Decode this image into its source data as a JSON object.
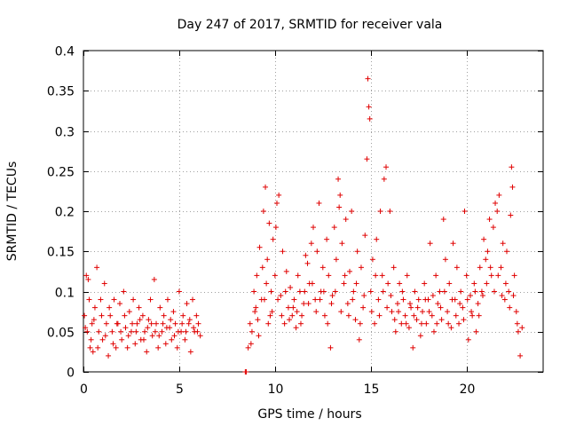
{
  "chart_data": {
    "type": "scatter",
    "title": "Day 247 of 2017, SRMTID for receiver vala",
    "xlabel": "GPS time / hours",
    "ylabel": "SRMTID / TECUs",
    "xlim": [
      0,
      24
    ],
    "ylim": [
      0,
      0.4
    ],
    "xticks": [
      0,
      5,
      10,
      15,
      20
    ],
    "xtick_labels": [
      "0",
      "5",
      "10",
      "15",
      "20"
    ],
    "yticks": [
      0,
      0.05,
      0.1,
      0.15,
      0.2,
      0.25,
      0.3,
      0.35,
      0.4
    ],
    "ytick_labels": [
      "0",
      "0.05",
      "0.1",
      "0.15",
      "0.2",
      "0.25",
      "0.3",
      "0.35",
      "0.4"
    ],
    "grid": true,
    "marker": "plus",
    "color": "#e00000",
    "series": [
      {
        "name": "SRMTID",
        "points": [
          [
            0.05,
            0.07
          ],
          [
            0.15,
            0.12
          ],
          [
            0.2,
            0.05
          ],
          [
            0.25,
            0.115
          ],
          [
            0.3,
            0.09
          ],
          [
            0.35,
            0.03
          ],
          [
            0.45,
            0.06
          ],
          [
            0.5,
            0.025
          ],
          [
            0.6,
            0.08
          ],
          [
            0.7,
            0.13
          ],
          [
            0.8,
            0.05
          ],
          [
            0.9,
            0.09
          ],
          [
            1.0,
            0.04
          ],
          [
            1.1,
            0.11
          ],
          [
            1.2,
            0.06
          ],
          [
            1.3,
            0.02
          ],
          [
            1.4,
            0.07
          ],
          [
            1.5,
            0.05
          ],
          [
            1.6,
            0.09
          ],
          [
            1.7,
            0.03
          ],
          [
            1.8,
            0.06
          ],
          [
            1.9,
            0.085
          ],
          [
            2.0,
            0.04
          ],
          [
            2.1,
            0.1
          ],
          [
            2.2,
            0.055
          ],
          [
            2.3,
            0.03
          ],
          [
            2.4,
            0.075
          ],
          [
            2.5,
            0.05
          ],
          [
            2.6,
            0.09
          ],
          [
            2.7,
            0.035
          ],
          [
            2.8,
            0.06
          ],
          [
            2.9,
            0.08
          ],
          [
            3.0,
            0.04
          ],
          [
            3.1,
            0.07
          ],
          [
            3.2,
            0.05
          ],
          [
            3.3,
            0.025
          ],
          [
            3.4,
            0.065
          ],
          [
            3.5,
            0.09
          ],
          [
            3.6,
            0.045
          ],
          [
            3.7,
            0.115
          ],
          [
            3.8,
            0.06
          ],
          [
            3.9,
            0.03
          ],
          [
            4.0,
            0.08
          ],
          [
            4.1,
            0.05
          ],
          [
            4.2,
            0.07
          ],
          [
            4.3,
            0.035
          ],
          [
            4.4,
            0.09
          ],
          [
            4.5,
            0.055
          ],
          [
            4.6,
            0.04
          ],
          [
            4.7,
            0.075
          ],
          [
            4.8,
            0.06
          ],
          [
            4.9,
            0.03
          ],
          [
            5.0,
            0.1
          ],
          [
            5.1,
            0.05
          ],
          [
            5.2,
            0.07
          ],
          [
            5.3,
            0.04
          ],
          [
            5.4,
            0.085
          ],
          [
            5.5,
            0.06
          ],
          [
            5.6,
            0.025
          ],
          [
            5.7,
            0.09
          ],
          [
            5.8,
            0.05
          ],
          [
            5.9,
            0.07
          ],
          [
            6.0,
            0.06
          ],
          [
            6.1,
            0.045
          ],
          [
            0.1,
            0.055
          ],
          [
            0.4,
            0.04
          ],
          [
            0.55,
            0.065
          ],
          [
            0.75,
            0.03
          ],
          [
            0.95,
            0.07
          ],
          [
            1.15,
            0.045
          ],
          [
            1.35,
            0.08
          ],
          [
            1.55,
            0.035
          ],
          [
            1.75,
            0.06
          ],
          [
            1.95,
            0.05
          ],
          [
            2.15,
            0.07
          ],
          [
            2.35,
            0.045
          ],
          [
            2.55,
            0.06
          ],
          [
            2.75,
            0.05
          ],
          [
            2.95,
            0.065
          ],
          [
            3.15,
            0.04
          ],
          [
            3.35,
            0.055
          ],
          [
            3.55,
            0.06
          ],
          [
            3.75,
            0.05
          ],
          [
            3.95,
            0.045
          ],
          [
            4.15,
            0.06
          ],
          [
            4.35,
            0.055
          ],
          [
            4.55,
            0.065
          ],
          [
            4.75,
            0.045
          ],
          [
            4.95,
            0.05
          ],
          [
            5.15,
            0.06
          ],
          [
            5.35,
            0.05
          ],
          [
            5.55,
            0.065
          ],
          [
            5.75,
            0.055
          ],
          [
            5.95,
            0.05
          ],
          [
            8.45,
            0.0
          ],
          [
            8.5,
            0.0
          ],
          [
            8.6,
            0.03
          ],
          [
            8.7,
            0.06
          ],
          [
            8.8,
            0.05
          ],
          [
            8.9,
            0.1
          ],
          [
            9.0,
            0.08
          ],
          [
            9.05,
            0.12
          ],
          [
            9.1,
            0.065
          ],
          [
            9.2,
            0.155
          ],
          [
            9.3,
            0.09
          ],
          [
            9.35,
            0.13
          ],
          [
            9.4,
            0.2
          ],
          [
            9.5,
            0.23
          ],
          [
            9.55,
            0.11
          ],
          [
            9.6,
            0.14
          ],
          [
            9.7,
            0.185
          ],
          [
            9.75,
            0.07
          ],
          [
            9.8,
            0.1
          ],
          [
            9.9,
            0.165
          ],
          [
            10.0,
            0.12
          ],
          [
            10.05,
            0.18
          ],
          [
            10.1,
            0.21
          ],
          [
            10.2,
            0.22
          ],
          [
            10.3,
            0.095
          ],
          [
            10.4,
            0.15
          ],
          [
            10.5,
            0.06
          ],
          [
            10.6,
            0.125
          ],
          [
            10.7,
            0.08
          ],
          [
            10.8,
            0.105
          ],
          [
            10.9,
            0.07
          ],
          [
            11.0,
            0.09
          ],
          [
            11.1,
            0.055
          ],
          [
            11.2,
            0.12
          ],
          [
            11.3,
            0.1
          ],
          [
            11.4,
            0.07
          ],
          [
            11.5,
            0.085
          ],
          [
            11.6,
            0.145
          ],
          [
            11.7,
            0.135
          ],
          [
            11.8,
            0.11
          ],
          [
            11.9,
            0.16
          ],
          [
            12.0,
            0.18
          ],
          [
            12.1,
            0.09
          ],
          [
            12.2,
            0.15
          ],
          [
            12.3,
            0.21
          ],
          [
            12.4,
            0.1
          ],
          [
            12.5,
            0.13
          ],
          [
            12.6,
            0.07
          ],
          [
            12.7,
            0.165
          ],
          [
            12.8,
            0.12
          ],
          [
            12.9,
            0.03
          ],
          [
            13.0,
            0.095
          ],
          [
            13.1,
            0.18
          ],
          [
            13.2,
            0.14
          ],
          [
            13.3,
            0.24
          ],
          [
            13.35,
            0.205
          ],
          [
            13.4,
            0.22
          ],
          [
            13.5,
            0.16
          ],
          [
            13.6,
            0.11
          ],
          [
            13.7,
            0.19
          ],
          [
            13.8,
            0.085
          ],
          [
            13.9,
            0.125
          ],
          [
            14.0,
            0.2
          ],
          [
            14.1,
            0.1
          ],
          [
            14.2,
            0.065
          ],
          [
            14.3,
            0.15
          ],
          [
            14.4,
            0.04
          ],
          [
            14.5,
            0.13
          ],
          [
            14.6,
            0.08
          ],
          [
            14.7,
            0.17
          ],
          [
            14.8,
            0.265
          ],
          [
            14.85,
            0.365
          ],
          [
            14.9,
            0.33
          ],
          [
            14.95,
            0.315
          ],
          [
            15.0,
            0.1
          ],
          [
            15.1,
            0.14
          ],
          [
            15.2,
            0.06
          ],
          [
            15.3,
            0.165
          ],
          [
            15.4,
            0.09
          ],
          [
            15.5,
            0.2
          ],
          [
            15.6,
            0.12
          ],
          [
            15.7,
            0.24
          ],
          [
            15.8,
            0.255
          ],
          [
            15.9,
            0.11
          ],
          [
            16.0,
            0.2
          ],
          [
            16.1,
            0.075
          ],
          [
            16.2,
            0.13
          ],
          [
            16.3,
            0.05
          ],
          [
            16.4,
            0.085
          ],
          [
            16.5,
            0.11
          ],
          [
            16.6,
            0.06
          ],
          [
            16.7,
            0.09
          ],
          [
            16.8,
            0.07
          ],
          [
            16.9,
            0.12
          ],
          [
            17.0,
            0.055
          ],
          [
            17.1,
            0.08
          ],
          [
            17.2,
            0.03
          ],
          [
            17.3,
            0.1
          ],
          [
            17.4,
            0.065
          ],
          [
            17.5,
            0.09
          ],
          [
            17.6,
            0.045
          ],
          [
            17.7,
            0.075
          ],
          [
            17.8,
            0.11
          ],
          [
            17.9,
            0.06
          ],
          [
            18.0,
            0.09
          ],
          [
            18.1,
            0.16
          ],
          [
            18.2,
            0.07
          ],
          [
            18.3,
            0.05
          ],
          [
            18.4,
            0.12
          ],
          [
            18.5,
            0.085
          ],
          [
            18.6,
            0.1
          ],
          [
            18.7,
            0.065
          ],
          [
            18.8,
            0.19
          ],
          [
            18.9,
            0.14
          ],
          [
            19.0,
            0.075
          ],
          [
            19.1,
            0.11
          ],
          [
            19.2,
            0.055
          ],
          [
            19.3,
            0.16
          ],
          [
            19.4,
            0.09
          ],
          [
            19.5,
            0.13
          ],
          [
            19.6,
            0.06
          ],
          [
            19.7,
            0.1
          ],
          [
            19.8,
            0.08
          ],
          [
            19.9,
            0.2
          ],
          [
            20.0,
            0.12
          ],
          [
            20.1,
            0.04
          ],
          [
            20.2,
            0.095
          ],
          [
            20.3,
            0.07
          ],
          [
            20.4,
            0.11
          ],
          [
            20.5,
            0.05
          ],
          [
            20.6,
            0.085
          ],
          [
            20.7,
            0.13
          ],
          [
            20.8,
            0.1
          ],
          [
            20.9,
            0.165
          ],
          [
            21.0,
            0.14
          ],
          [
            21.1,
            0.15
          ],
          [
            21.2,
            0.19
          ],
          [
            21.3,
            0.12
          ],
          [
            21.4,
            0.18
          ],
          [
            21.5,
            0.21
          ],
          [
            21.6,
            0.2
          ],
          [
            21.7,
            0.22
          ],
          [
            21.8,
            0.13
          ],
          [
            21.9,
            0.16
          ],
          [
            22.0,
            0.09
          ],
          [
            22.1,
            0.15
          ],
          [
            22.2,
            0.1
          ],
          [
            22.3,
            0.195
          ],
          [
            22.35,
            0.255
          ],
          [
            22.4,
            0.23
          ],
          [
            22.5,
            0.12
          ],
          [
            22.6,
            0.075
          ],
          [
            22.7,
            0.05
          ],
          [
            22.8,
            0.02
          ],
          [
            22.9,
            0.055
          ],
          [
            8.75,
            0.035
          ],
          [
            8.95,
            0.075
          ],
          [
            9.15,
            0.045
          ],
          [
            9.45,
            0.09
          ],
          [
            9.65,
            0.06
          ],
          [
            9.85,
            0.075
          ],
          [
            10.15,
            0.09
          ],
          [
            10.35,
            0.07
          ],
          [
            10.55,
            0.1
          ],
          [
            10.75,
            0.065
          ],
          [
            10.95,
            0.08
          ],
          [
            11.15,
            0.075
          ],
          [
            11.35,
            0.06
          ],
          [
            11.55,
            0.1
          ],
          [
            11.75,
            0.085
          ],
          [
            11.95,
            0.11
          ],
          [
            12.15,
            0.075
          ],
          [
            12.35,
            0.09
          ],
          [
            12.55,
            0.1
          ],
          [
            12.75,
            0.06
          ],
          [
            12.95,
            0.085
          ],
          [
            13.15,
            0.1
          ],
          [
            13.45,
            0.075
          ],
          [
            13.65,
            0.12
          ],
          [
            13.85,
            0.07
          ],
          [
            14.05,
            0.09
          ],
          [
            14.25,
            0.11
          ],
          [
            14.45,
            0.06
          ],
          [
            14.65,
            0.095
          ],
          [
            15.05,
            0.075
          ],
          [
            15.25,
            0.12
          ],
          [
            15.45,
            0.07
          ],
          [
            15.65,
            0.1
          ],
          [
            15.85,
            0.08
          ],
          [
            16.05,
            0.095
          ],
          [
            16.25,
            0.065
          ],
          [
            16.45,
            0.075
          ],
          [
            16.65,
            0.1
          ],
          [
            16.85,
            0.06
          ],
          [
            17.05,
            0.085
          ],
          [
            17.25,
            0.07
          ],
          [
            17.45,
            0.08
          ],
          [
            17.65,
            0.06
          ],
          [
            17.85,
            0.09
          ],
          [
            18.05,
            0.075
          ],
          [
            18.25,
            0.095
          ],
          [
            18.45,
            0.06
          ],
          [
            18.65,
            0.08
          ],
          [
            18.85,
            0.1
          ],
          [
            19.05,
            0.06
          ],
          [
            19.25,
            0.09
          ],
          [
            19.45,
            0.07
          ],
          [
            19.65,
            0.085
          ],
          [
            19.85,
            0.065
          ],
          [
            20.05,
            0.09
          ],
          [
            20.25,
            0.075
          ],
          [
            20.45,
            0.1
          ],
          [
            20.65,
            0.07
          ],
          [
            20.85,
            0.095
          ],
          [
            21.05,
            0.11
          ],
          [
            21.25,
            0.13
          ],
          [
            21.45,
            0.1
          ],
          [
            21.65,
            0.12
          ],
          [
            21.85,
            0.095
          ],
          [
            22.05,
            0.11
          ],
          [
            22.25,
            0.08
          ],
          [
            22.45,
            0.095
          ],
          [
            22.65,
            0.06
          ]
        ]
      }
    ]
  }
}
